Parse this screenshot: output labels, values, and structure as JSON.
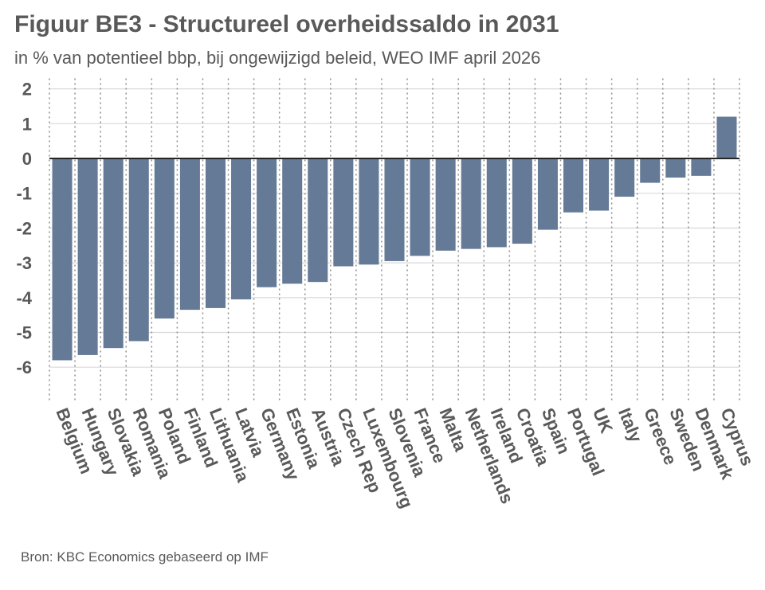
{
  "chart_data": {
    "type": "bar",
    "title": "Figuur BE3 - Structureel overheidssaldo in 2031",
    "subtitle": "in % van potentieel bbp, bij ongewijzigd beleid, WEO IMF april 2026",
    "source": "Bron: KBC Economics gebaseerd op IMF",
    "xlabel": "",
    "ylabel": "",
    "ylim": [
      -6.3,
      2.3
    ],
    "yticks": [
      2,
      1,
      0,
      -1,
      -2,
      -3,
      -4,
      -5,
      -6
    ],
    "grid": true,
    "legend": "none",
    "bar_color": "#647a96",
    "categories": [
      "Belgium",
      "Hungary",
      "Slovakia",
      "Romania",
      "Poland",
      "Finland",
      "Lithuania",
      "Latvia",
      "Germany",
      "Estonia",
      "Austria",
      "Czech Rep",
      "Luxembourg",
      "Slovenia",
      "France",
      "Malta",
      "Netherlands",
      "Ireland",
      "Croatia",
      "Spain",
      "Portugal",
      "UK",
      "Italy",
      "Greece",
      "Sweden",
      "Denmark",
      "Cyprus"
    ],
    "values": [
      -5.8,
      -5.65,
      -5.45,
      -5.25,
      -4.6,
      -4.35,
      -4.3,
      -4.05,
      -3.7,
      -3.6,
      -3.55,
      -3.1,
      -3.05,
      -2.95,
      -2.8,
      -2.65,
      -2.6,
      -2.55,
      -2.45,
      -2.05,
      -1.55,
      -1.5,
      -1.1,
      -0.7,
      -0.55,
      -0.5,
      1.2
    ]
  }
}
